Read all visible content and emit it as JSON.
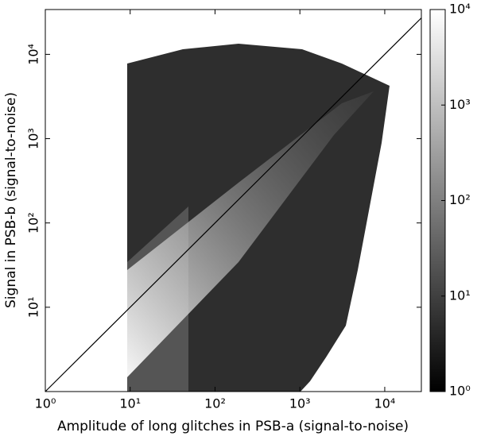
{
  "chart_data": {
    "type": "hist2d",
    "x_label": "Amplitude of long glitches in PSB-a (signal-to-noise)",
    "y_label": "Signal in PSB-b (signal-to-noise)",
    "log_x": true,
    "log_y": true,
    "xlim": [
      1,
      27000
    ],
    "ylim": [
      1,
      34000
    ],
    "xticks": [
      {
        "value": 1,
        "label": "10⁰"
      },
      {
        "value": 10,
        "label": "10¹"
      },
      {
        "value": 100,
        "label": "10²"
      },
      {
        "value": 1000,
        "label": "10³"
      },
      {
        "value": 10000,
        "label": "10⁴"
      }
    ],
    "yticks": [
      {
        "value": 10,
        "label": "10¹"
      },
      {
        "value": 100,
        "label": "10²"
      },
      {
        "value": 1000,
        "label": "10³"
      },
      {
        "value": 10000,
        "label": "10⁴"
      }
    ],
    "reference_line": {
      "x": [
        1,
        27000
      ],
      "values": [
        1,
        27000
      ],
      "color": "#000000"
    },
    "colorbar": {
      "lim": [
        1,
        10000
      ],
      "log": true,
      "ticks": [
        {
          "value": 1,
          "label": "10⁰"
        },
        {
          "value": 10,
          "label": "10¹"
        },
        {
          "value": 100,
          "label": "10²"
        },
        {
          "value": 1000,
          "label": "10³"
        },
        {
          "value": 10000,
          "label": "10⁴"
        }
      ],
      "colors": [
        "#000000",
        "#ffffff"
      ]
    }
  }
}
